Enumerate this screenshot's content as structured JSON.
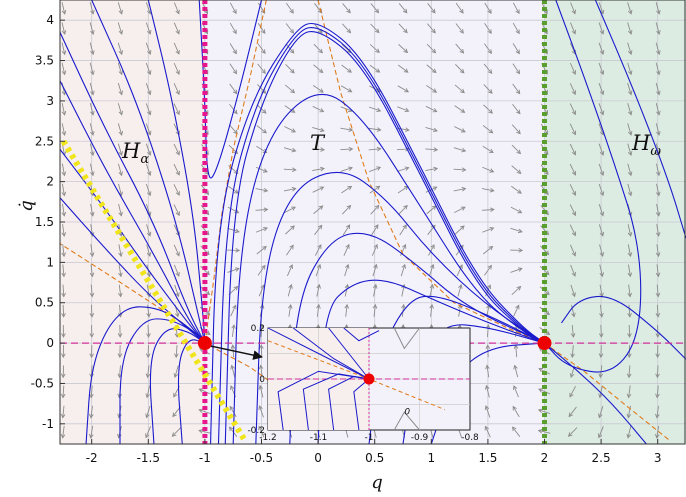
{
  "chart_data": {
    "type": "phase-portrait",
    "xlabel": "q",
    "ylabel": "q̇",
    "xlim": [
      -2.28,
      3.25
    ],
    "ylim": [
      -1.25,
      4.25
    ],
    "xticks": [
      -2,
      -1.5,
      -1,
      -0.5,
      0,
      0.5,
      1,
      1.5,
      2,
      2.5,
      3
    ],
    "xtick_labels": [
      "-2",
      "-1.5",
      "-1",
      "-0.5",
      "0",
      "0.5",
      "1",
      "1.5",
      "2",
      "2.5",
      "3"
    ],
    "yticks": [
      -1,
      -0.5,
      0,
      0.5,
      1,
      1.5,
      2,
      2.5,
      3,
      3.5,
      4
    ],
    "ytick_labels": [
      "-1",
      "-0.5",
      "0",
      "0.5",
      "1",
      "1.5",
      "2",
      "2.5",
      "3",
      "3.5",
      "4"
    ],
    "grid": true,
    "regions": [
      {
        "label": "H",
        "subscript": "α",
        "x_range": [
          -2.28,
          -1
        ],
        "color": "#f7efee"
      },
      {
        "label": "T",
        "subscript": "",
        "x_range": [
          -1,
          2
        ],
        "color": "#f3f2fb"
      },
      {
        "label": "H",
        "subscript": "ω",
        "x_range": [
          2,
          3.25
        ],
        "color": "#dcece2"
      }
    ],
    "boundaries": [
      {
        "x": -1,
        "color": "#e8168c"
      },
      {
        "x": 2,
        "color": "#5a9e2f"
      }
    ],
    "equilibria": [
      {
        "q": -1,
        "qdot": 0
      },
      {
        "q": 2,
        "qdot": 0
      }
    ],
    "yellow_line": {
      "from": [
        -2.25,
        2.5
      ],
      "to": [
        -0.65,
        -1.2
      ]
    },
    "inset": {
      "xlim": [
        -1.2,
        -0.8
      ],
      "ylim": [
        -0.2,
        0.2
      ],
      "xtick_labels": [
        "-1.2",
        "-1.1",
        "-1",
        "-0.9",
        "-0.8"
      ],
      "ytick_labels": [
        "0.2",
        "0",
        "-0.2"
      ],
      "annotation": "0"
    },
    "colors": {
      "trajectory": "#1a1acc",
      "nullcline": "#e07b1a",
      "axis_line": "#d0309a",
      "equilibrium": "#ee0000",
      "vector": "#8c8c8c",
      "yellow": "#f0e51a"
    }
  }
}
